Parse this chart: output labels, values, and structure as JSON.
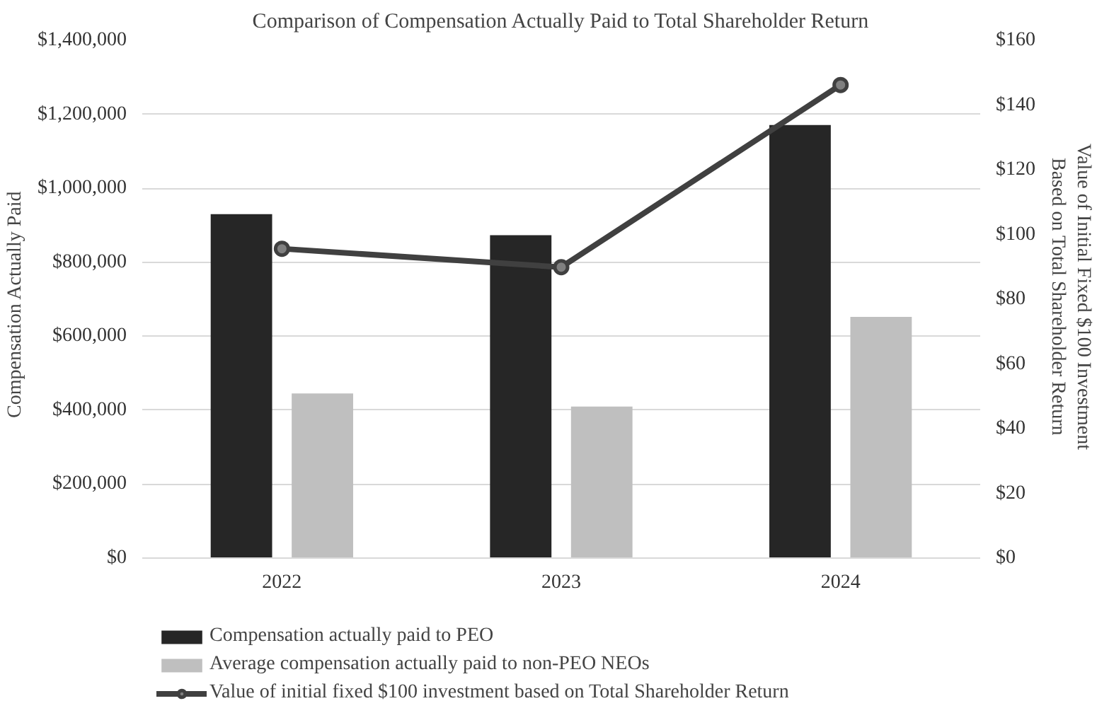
{
  "chart_data": {
    "type": "bar",
    "title": "Comparison of Compensation Actually Paid to Total Shareholder Return",
    "ylabel": "Compensation  Actually  Paid",
    "y2label": "Value of Initial  Fixed $100 Investment\nBased on Total Shareholder  Return",
    "categories": [
      "2022",
      "2023",
      "2024"
    ],
    "series": [
      {
        "name": "Compensation actually paid to PEO",
        "color": "#262626",
        "values": [
          930000,
          873000,
          1171000
        ]
      },
      {
        "name": "Average compensation actually paid to non-PEO NEOs",
        "color": "#bfbfbf",
        "values": [
          445000,
          410000,
          652000
        ]
      },
      {
        "name": "Value of initial fixed $100 investment based on Total Shareholder Return",
        "type": "line",
        "axis": "y2",
        "color": "#404040",
        "marker": "circle",
        "values": [
          95.6,
          89.9,
          146.2
        ]
      }
    ],
    "ylim": [
      0,
      1400000
    ],
    "yticks": [
      {
        "value": 0,
        "label": "$0"
      },
      {
        "value": 200000,
        "label": "$200,000"
      },
      {
        "value": 400000,
        "label": "$400,000"
      },
      {
        "value": 600000,
        "label": "$600,000"
      },
      {
        "value": 800000,
        "label": "$800,000"
      },
      {
        "value": 1000000,
        "label": "$1,000,000"
      },
      {
        "value": 1200000,
        "label": "$1,200,000"
      },
      {
        "value": 1400000,
        "label": "$1,400,000"
      }
    ],
    "y2lim": [
      0,
      160
    ],
    "y2ticks": [
      {
        "value": 0,
        "label": "$0"
      },
      {
        "value": 20,
        "label": "$20"
      },
      {
        "value": 40,
        "label": "$40"
      },
      {
        "value": 60,
        "label": "$60"
      },
      {
        "value": 80,
        "label": "$80"
      },
      {
        "value": 100,
        "label": "$100"
      },
      {
        "value": 120,
        "label": "$120"
      },
      {
        "value": 140,
        "label": "$140"
      },
      {
        "value": 160,
        "label": "$160"
      }
    ],
    "grid": "y",
    "legend": "bottom"
  }
}
